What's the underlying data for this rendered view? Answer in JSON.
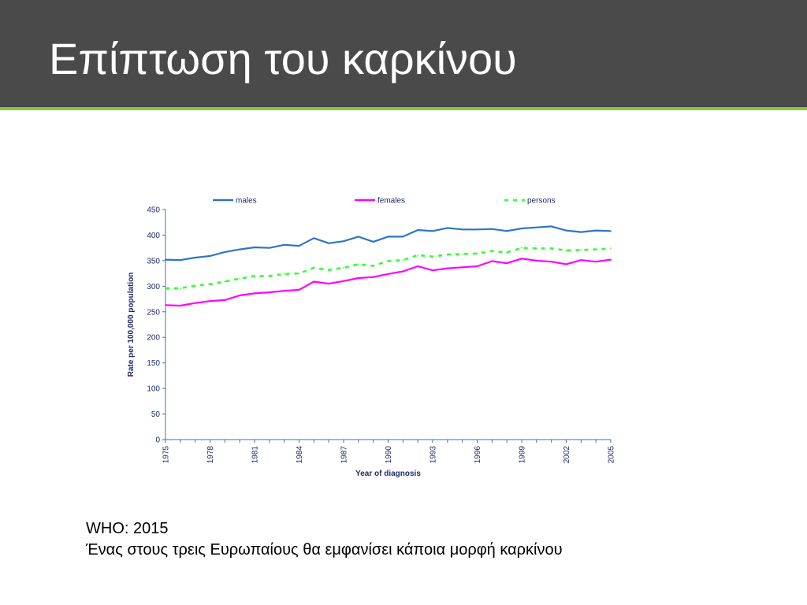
{
  "header": {
    "title": "Επίπτωση του καρκίνου"
  },
  "chart_data": {
    "type": "line",
    "xlabel": "Year of diagnosis",
    "ylabel": "Rate per 100,000 population",
    "xlim": [
      1975,
      2005
    ],
    "ylim": [
      0,
      450
    ],
    "y_ticks": [
      0,
      50,
      100,
      150,
      200,
      250,
      300,
      350,
      400,
      450
    ],
    "x_tick_labels": [
      "1975",
      "1978",
      "1981",
      "1984",
      "1987",
      "1990",
      "1993",
      "1996",
      "1999",
      "2002",
      "2005"
    ],
    "x": [
      1975,
      1976,
      1977,
      1978,
      1979,
      1980,
      1981,
      1982,
      1983,
      1984,
      1985,
      1986,
      1987,
      1988,
      1989,
      1990,
      1991,
      1992,
      1993,
      1994,
      1995,
      1996,
      1997,
      1998,
      1999,
      2000,
      2001,
      2002,
      2003,
      2004,
      2005
    ],
    "legend_position": "top",
    "grid": false,
    "series": [
      {
        "name": "males",
        "color": "#2e75c8",
        "style": "solid",
        "values": [
          352,
          351,
          356,
          359,
          367,
          372,
          376,
          375,
          381,
          379,
          394,
          384,
          388,
          397,
          387,
          397,
          397,
          410,
          408,
          414,
          411,
          411,
          412,
          408,
          413,
          415,
          417,
          409,
          406,
          409,
          408
        ]
      },
      {
        "name": "females",
        "color": "#ff00ff",
        "style": "solid",
        "values": [
          263,
          262,
          267,
          271,
          273,
          282,
          286,
          288,
          291,
          293,
          309,
          305,
          310,
          316,
          318,
          324,
          329,
          339,
          331,
          335,
          337,
          339,
          349,
          345,
          354,
          350,
          348,
          343,
          351,
          348,
          352
        ]
      },
      {
        "name": "persons",
        "color": "#33ff33",
        "style": "dashed",
        "values": [
          296,
          296,
          301,
          304,
          309,
          315,
          320,
          320,
          324,
          325,
          336,
          332,
          336,
          343,
          340,
          349,
          351,
          361,
          358,
          362,
          363,
          364,
          369,
          366,
          375,
          374,
          374,
          370,
          371,
          372,
          374
        ]
      }
    ]
  },
  "caption": {
    "line1": "WHO: 2015",
    "line2": "Ένας στους τρεις Ευρωπαίους θα εμφανίσει κάποια μορφή καρκίνου"
  }
}
